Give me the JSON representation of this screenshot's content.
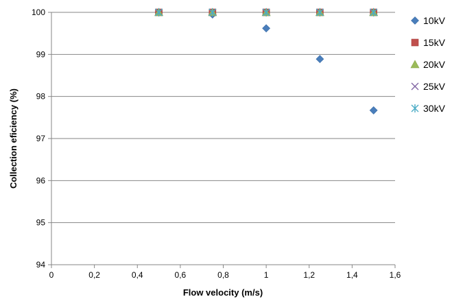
{
  "chart_data": {
    "type": "scatter",
    "title": "",
    "xlabel": "Flow velocity (m/s)",
    "ylabel": "Collection eficiency (%)",
    "xlim": [
      0,
      1.6
    ],
    "ylim": [
      94,
      100
    ],
    "x_ticks": [
      "0",
      "0,2",
      "0,4",
      "0,6",
      "0,8",
      "1",
      "1,2",
      "1,4",
      "1,6"
    ],
    "y_ticks": [
      "94",
      "95",
      "96",
      "97",
      "98",
      "99",
      "100"
    ],
    "grid": "horizontal",
    "legend_position": "right",
    "series": [
      {
        "name": "10kV",
        "marker": "diamond",
        "color": "#4a7ebb",
        "x": [
          0.5,
          0.75,
          1.0,
          1.25,
          1.5
        ],
        "y": [
          100,
          99.95,
          99.62,
          98.89,
          97.67
        ]
      },
      {
        "name": "15kV",
        "marker": "square",
        "color": "#c0504d",
        "x": [
          0.5,
          0.75,
          1.0,
          1.25,
          1.5
        ],
        "y": [
          100,
          100,
          100,
          100,
          100
        ]
      },
      {
        "name": "20kV",
        "marker": "triangle",
        "color": "#9bbb59",
        "x": [
          0.5,
          0.75,
          1.0,
          1.25,
          1.5
        ],
        "y": [
          100,
          100,
          100,
          100,
          100
        ]
      },
      {
        "name": "25kV",
        "marker": "x",
        "color": "#8064a2",
        "x": [
          0.5,
          0.75,
          1.0,
          1.25,
          1.5
        ],
        "y": [
          100,
          100,
          100,
          100,
          100
        ]
      },
      {
        "name": "30kV",
        "marker": "star",
        "color": "#4bacc6",
        "x": [
          0.5,
          0.75,
          1.0,
          1.25,
          1.5
        ],
        "y": [
          100,
          100,
          100,
          100,
          100
        ]
      }
    ]
  }
}
